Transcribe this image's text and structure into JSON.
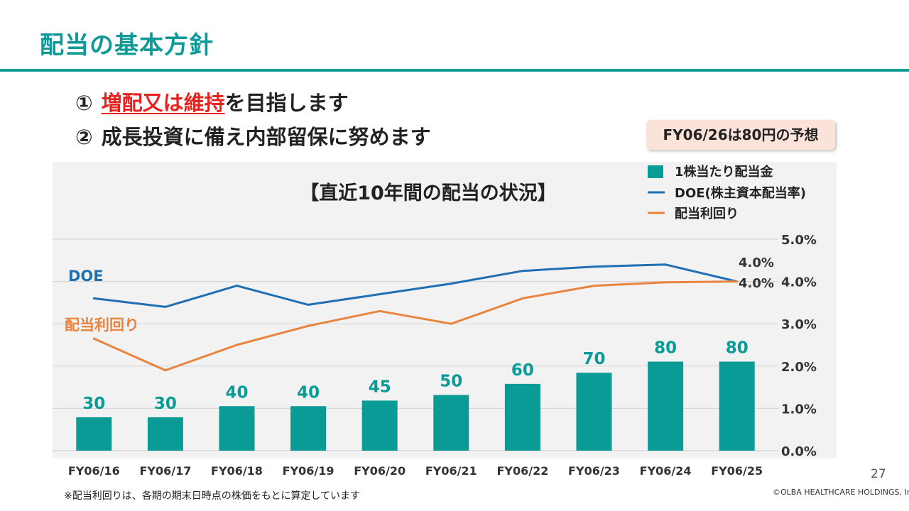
{
  "slide": {
    "title": "配当の基本方針",
    "policy_1": {
      "num": "①",
      "highlight": "増配又は維持",
      "rest": "を目指します"
    },
    "policy_2": {
      "num": "②",
      "text": "成長投資に備え内部留保に努めます"
    },
    "forecast_note": "FY06/26は80円の予想",
    "footnote": "※配当利回りは、各期の期末日時点の株価をもとに算定しています",
    "page_number": "27",
    "copyright": "©OLBA HEALTHCARE HOLDINGS, Inc."
  },
  "colors": {
    "brand": "#0f9a97",
    "bar": "#0a9b96",
    "doe_line": "#1f6fb2",
    "yield_line": "#e8843d",
    "highlight": "#e8221f"
  },
  "chart_data": {
    "type": "bar",
    "title": "【直近10年間の配当の状況】",
    "categories": [
      "FY06/16",
      "FY06/17",
      "FY06/18",
      "FY06/19",
      "FY06/20",
      "FY06/21",
      "FY06/22",
      "FY06/23",
      "FY06/24",
      "FY06/25"
    ],
    "series": [
      {
        "name": "1株当たり配当金",
        "kind": "bar",
        "axis": "left",
        "values": [
          30,
          30,
          40,
          40,
          45,
          50,
          60,
          70,
          80,
          80
        ],
        "labels": [
          "30",
          "30",
          "40",
          "40",
          "45",
          "50",
          "60",
          "70",
          "80",
          "80"
        ]
      },
      {
        "name": "DOE(株主資本配当率)",
        "kind": "line",
        "axis": "right",
        "line_label": "DOE",
        "values": [
          3.6,
          3.4,
          3.9,
          3.45,
          3.7,
          3.95,
          4.25,
          4.35,
          4.4,
          4.0
        ],
        "end_label": "4.0%"
      },
      {
        "name": "配当利回り",
        "kind": "line",
        "axis": "right",
        "line_label": "配当利回り",
        "values": [
          2.65,
          1.9,
          2.5,
          2.95,
          3.3,
          3.0,
          3.6,
          3.9,
          3.98,
          4.0
        ],
        "end_label": "4.0%"
      }
    ],
    "left_axis_range": [
      0,
      190
    ],
    "right_axis": {
      "range": [
        0,
        5
      ],
      "ticks": [
        "0.0%",
        "1.0%",
        "2.0%",
        "3.0%",
        "4.0%",
        "5.0%"
      ],
      "tick_values": [
        0,
        1,
        2,
        3,
        4,
        5
      ]
    },
    "grid": true,
    "legend_position": "top-right"
  }
}
